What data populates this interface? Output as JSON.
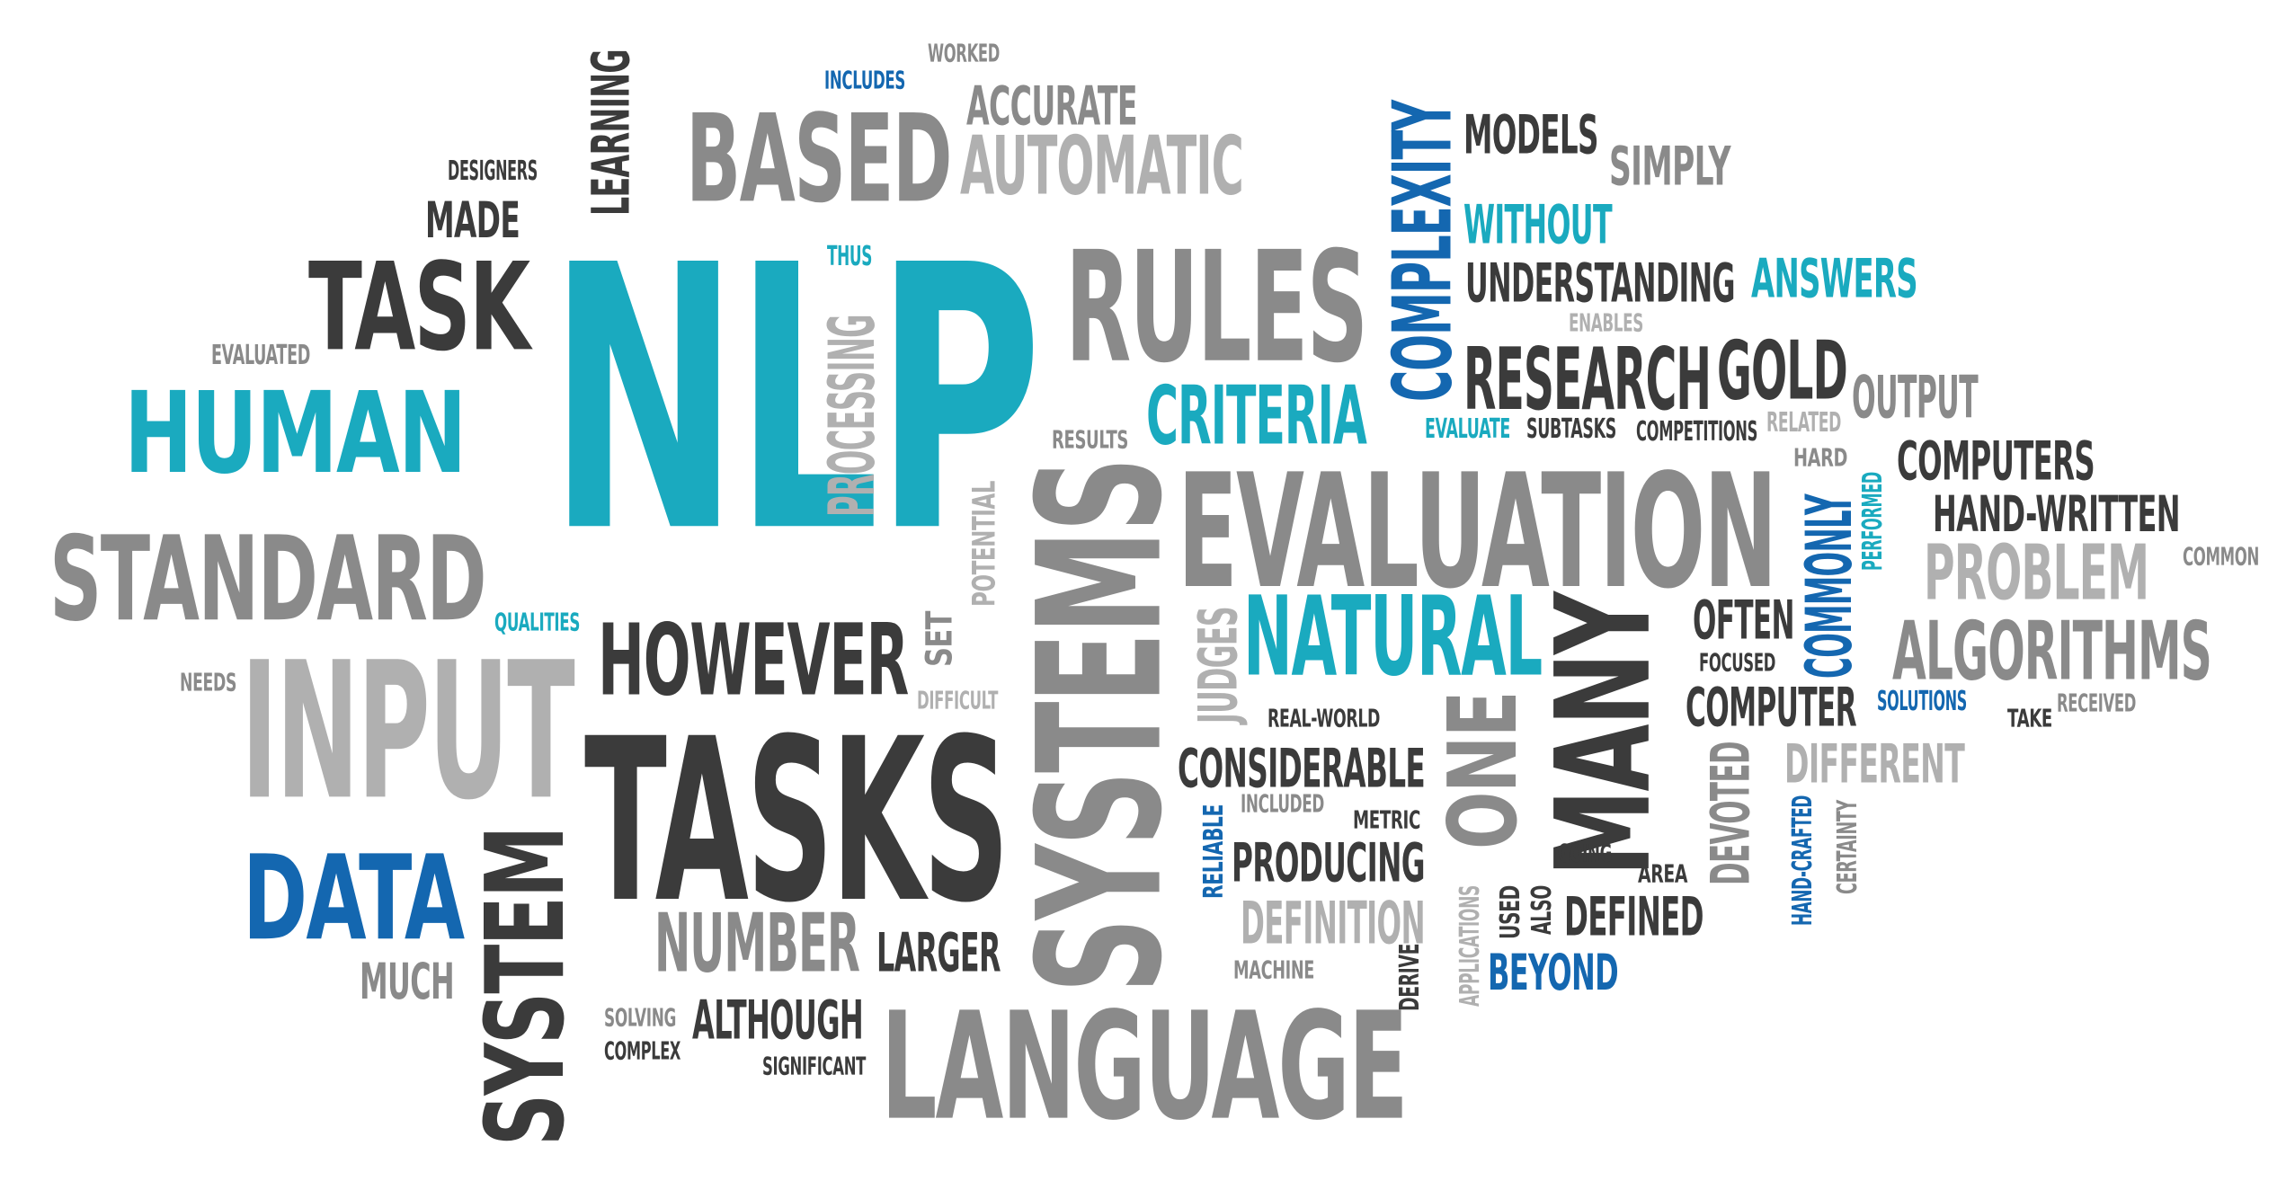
{
  "palette": {
    "dark": "#3b3b3b",
    "gray": "#8a8a8a",
    "light": "#b0b0b0",
    "teal": "#1aaabf",
    "blue": "#1467b0",
    "background": "#ffffff"
  },
  "words": [
    {
      "id": "nlp",
      "text": "NLP",
      "color": "teal"
    },
    {
      "id": "evaluation",
      "text": "EVALUATION",
      "color": "gray"
    },
    {
      "id": "tasks",
      "text": "TASKS",
      "color": "dark"
    },
    {
      "id": "systems",
      "text": "SYSTEMS",
      "color": "gray"
    },
    {
      "id": "input",
      "text": "INPUT",
      "color": "light"
    },
    {
      "id": "language",
      "text": "LANGUAGE",
      "color": "gray"
    },
    {
      "id": "rules",
      "text": "RULES",
      "color": "gray"
    },
    {
      "id": "based",
      "text": "BASED",
      "color": "gray"
    },
    {
      "id": "human",
      "text": "HUMAN",
      "color": "teal"
    },
    {
      "id": "standard",
      "text": "STANDARD",
      "color": "gray"
    },
    {
      "id": "task",
      "text": "TASK",
      "color": "dark"
    },
    {
      "id": "system",
      "text": "SYSTEM",
      "color": "dark"
    },
    {
      "id": "data",
      "text": "DATA",
      "color": "blue"
    },
    {
      "id": "however",
      "text": "HOWEVER",
      "color": "dark"
    },
    {
      "id": "natural",
      "text": "NATURAL",
      "color": "teal"
    },
    {
      "id": "many",
      "text": "MANY",
      "color": "dark"
    },
    {
      "id": "one",
      "text": "ONE",
      "color": "gray"
    },
    {
      "id": "research",
      "text": "RESEARCH",
      "color": "dark"
    },
    {
      "id": "gold",
      "text": "GOLD",
      "color": "dark"
    },
    {
      "id": "complexity",
      "text": "COMPLEXITY",
      "color": "blue"
    },
    {
      "id": "criteria",
      "text": "CRITERIA",
      "color": "teal"
    },
    {
      "id": "automatic",
      "text": "AUTOMATIC",
      "color": "light"
    },
    {
      "id": "accurate",
      "text": "ACCURATE",
      "color": "gray"
    },
    {
      "id": "algorithms",
      "text": "ALGORITHMS",
      "color": "gray"
    },
    {
      "id": "problem",
      "text": "PROBLEM",
      "color": "light"
    },
    {
      "id": "number",
      "text": "NUMBER",
      "color": "gray"
    },
    {
      "id": "processing",
      "text": "PROCESSING",
      "color": "light"
    },
    {
      "id": "learning",
      "text": "LEARNING",
      "color": "dark"
    },
    {
      "id": "considerable",
      "text": "CONSIDERABLE",
      "color": "dark"
    },
    {
      "id": "producing",
      "text": "PRODUCING",
      "color": "dark"
    },
    {
      "id": "definition",
      "text": "DEFINITION",
      "color": "light"
    },
    {
      "id": "understanding",
      "text": "UNDERSTANDING",
      "color": "dark"
    },
    {
      "id": "without",
      "text": "WITHOUT",
      "color": "teal"
    },
    {
      "id": "answers",
      "text": "ANSWERS",
      "color": "teal"
    },
    {
      "id": "models",
      "text": "MODELS",
      "color": "dark"
    },
    {
      "id": "simply",
      "text": "SIMPLY",
      "color": "gray"
    },
    {
      "id": "output",
      "text": "OUTPUT",
      "color": "gray"
    },
    {
      "id": "computers",
      "text": "COMPUTERS",
      "color": "dark"
    },
    {
      "id": "hand_written",
      "text": "HAND-WRITTEN",
      "color": "dark"
    },
    {
      "id": "computer",
      "text": "COMPUTER",
      "color": "dark"
    },
    {
      "id": "often",
      "text": "OFTEN",
      "color": "dark"
    },
    {
      "id": "commonly",
      "text": "COMMONLY",
      "color": "blue"
    },
    {
      "id": "different",
      "text": "DIFFERENT",
      "color": "light"
    },
    {
      "id": "devoted",
      "text": "DEVOTED",
      "color": "gray"
    },
    {
      "id": "defined",
      "text": "DEFINED",
      "color": "dark"
    },
    {
      "id": "beyond",
      "text": "BEYOND",
      "color": "blue"
    },
    {
      "id": "larger",
      "text": "LARGER",
      "color": "dark"
    },
    {
      "id": "although",
      "text": "ALTHOUGH",
      "color": "dark"
    },
    {
      "id": "much",
      "text": "MUCH",
      "color": "gray"
    },
    {
      "id": "made",
      "text": "MADE",
      "color": "dark"
    },
    {
      "id": "judges",
      "text": "JUDGES",
      "color": "light"
    },
    {
      "id": "designers",
      "text": "DESIGNERS",
      "color": "dark"
    },
    {
      "id": "evaluated",
      "text": "EVALUATED",
      "color": "gray"
    },
    {
      "id": "includes",
      "text": "INCLUDES",
      "color": "blue"
    },
    {
      "id": "worked",
      "text": "WORKED",
      "color": "gray"
    },
    {
      "id": "thus",
      "text": "THUS",
      "color": "teal"
    },
    {
      "id": "results",
      "text": "RESULTS",
      "color": "gray"
    },
    {
      "id": "potential",
      "text": "POTENTIAL",
      "color": "light"
    },
    {
      "id": "qualities",
      "text": "QUALITIES",
      "color": "teal"
    },
    {
      "id": "needs",
      "text": "NEEDS",
      "color": "gray"
    },
    {
      "id": "set",
      "text": "SET",
      "color": "gray"
    },
    {
      "id": "difficult",
      "text": "DIFFICULT",
      "color": "light"
    },
    {
      "id": "enables",
      "text": "ENABLES",
      "color": "light"
    },
    {
      "id": "evaluate",
      "text": "EVALUATE",
      "color": "teal"
    },
    {
      "id": "subtasks",
      "text": "SUBTASKS",
      "color": "dark"
    },
    {
      "id": "competitions",
      "text": "COMPETITIONS",
      "color": "dark"
    },
    {
      "id": "related",
      "text": "RELATED",
      "color": "light"
    },
    {
      "id": "hard",
      "text": "HARD",
      "color": "gray"
    },
    {
      "id": "performed",
      "text": "PERFORMED",
      "color": "teal"
    },
    {
      "id": "common",
      "text": "COMMON",
      "color": "gray"
    },
    {
      "id": "focused",
      "text": "FOCUSED",
      "color": "dark"
    },
    {
      "id": "solutions",
      "text": "SOLUTIONS",
      "color": "blue"
    },
    {
      "id": "take",
      "text": "TAKE",
      "color": "dark"
    },
    {
      "id": "received",
      "text": "RECEIVED",
      "color": "gray"
    },
    {
      "id": "real_world",
      "text": "REAL-WORLD",
      "color": "dark"
    },
    {
      "id": "included",
      "text": "INCLUDED",
      "color": "gray"
    },
    {
      "id": "metric",
      "text": "METRIC",
      "color": "dark"
    },
    {
      "id": "reliable",
      "text": "RELIABLE",
      "color": "blue"
    },
    {
      "id": "going",
      "text": "GOING",
      "color": "dark"
    },
    {
      "id": "area",
      "text": "AREA",
      "color": "dark"
    },
    {
      "id": "hand_crafted",
      "text": "HAND-CRAFTED",
      "color": "blue"
    },
    {
      "id": "certainty",
      "text": "CERTAINTY",
      "color": "gray"
    },
    {
      "id": "applications",
      "text": "APPLICATIONS",
      "color": "light"
    },
    {
      "id": "used",
      "text": "USED",
      "color": "dark"
    },
    {
      "id": "also",
      "text": "ALSO",
      "color": "dark"
    },
    {
      "id": "machine",
      "text": "MACHINE",
      "color": "gray"
    },
    {
      "id": "derive",
      "text": "DERIVE",
      "color": "dark"
    },
    {
      "id": "solving",
      "text": "SOLVING",
      "color": "gray"
    },
    {
      "id": "complex",
      "text": "COMPLEX",
      "color": "dark"
    },
    {
      "id": "significant",
      "text": "SIGNIFICANT",
      "color": "dark"
    }
  ]
}
